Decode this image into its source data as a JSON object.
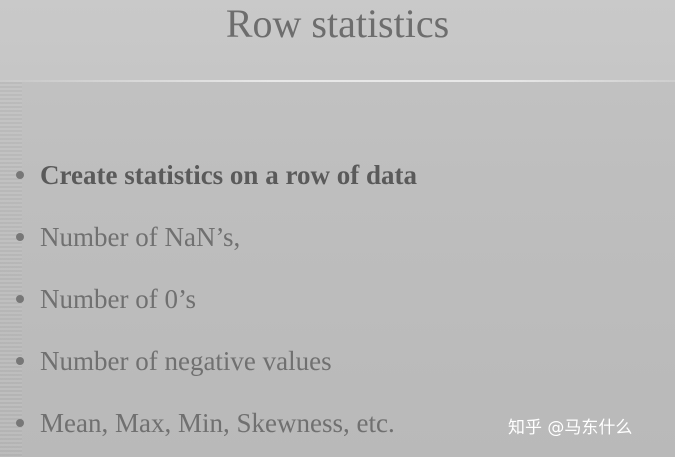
{
  "slide": {
    "title": "Row statistics",
    "bullets": [
      {
        "text": "Create statistics on a row of data",
        "bold": true
      },
      {
        "text": "Number of NaN’s,",
        "bold": false
      },
      {
        "text": "Number of 0’s",
        "bold": false
      },
      {
        "text": "Number of negative values",
        "bold": false
      },
      {
        "text": "Mean, Max, Min, Skewness, etc.",
        "bold": false
      }
    ]
  },
  "watermark": {
    "text": "知乎 @马东什么"
  }
}
